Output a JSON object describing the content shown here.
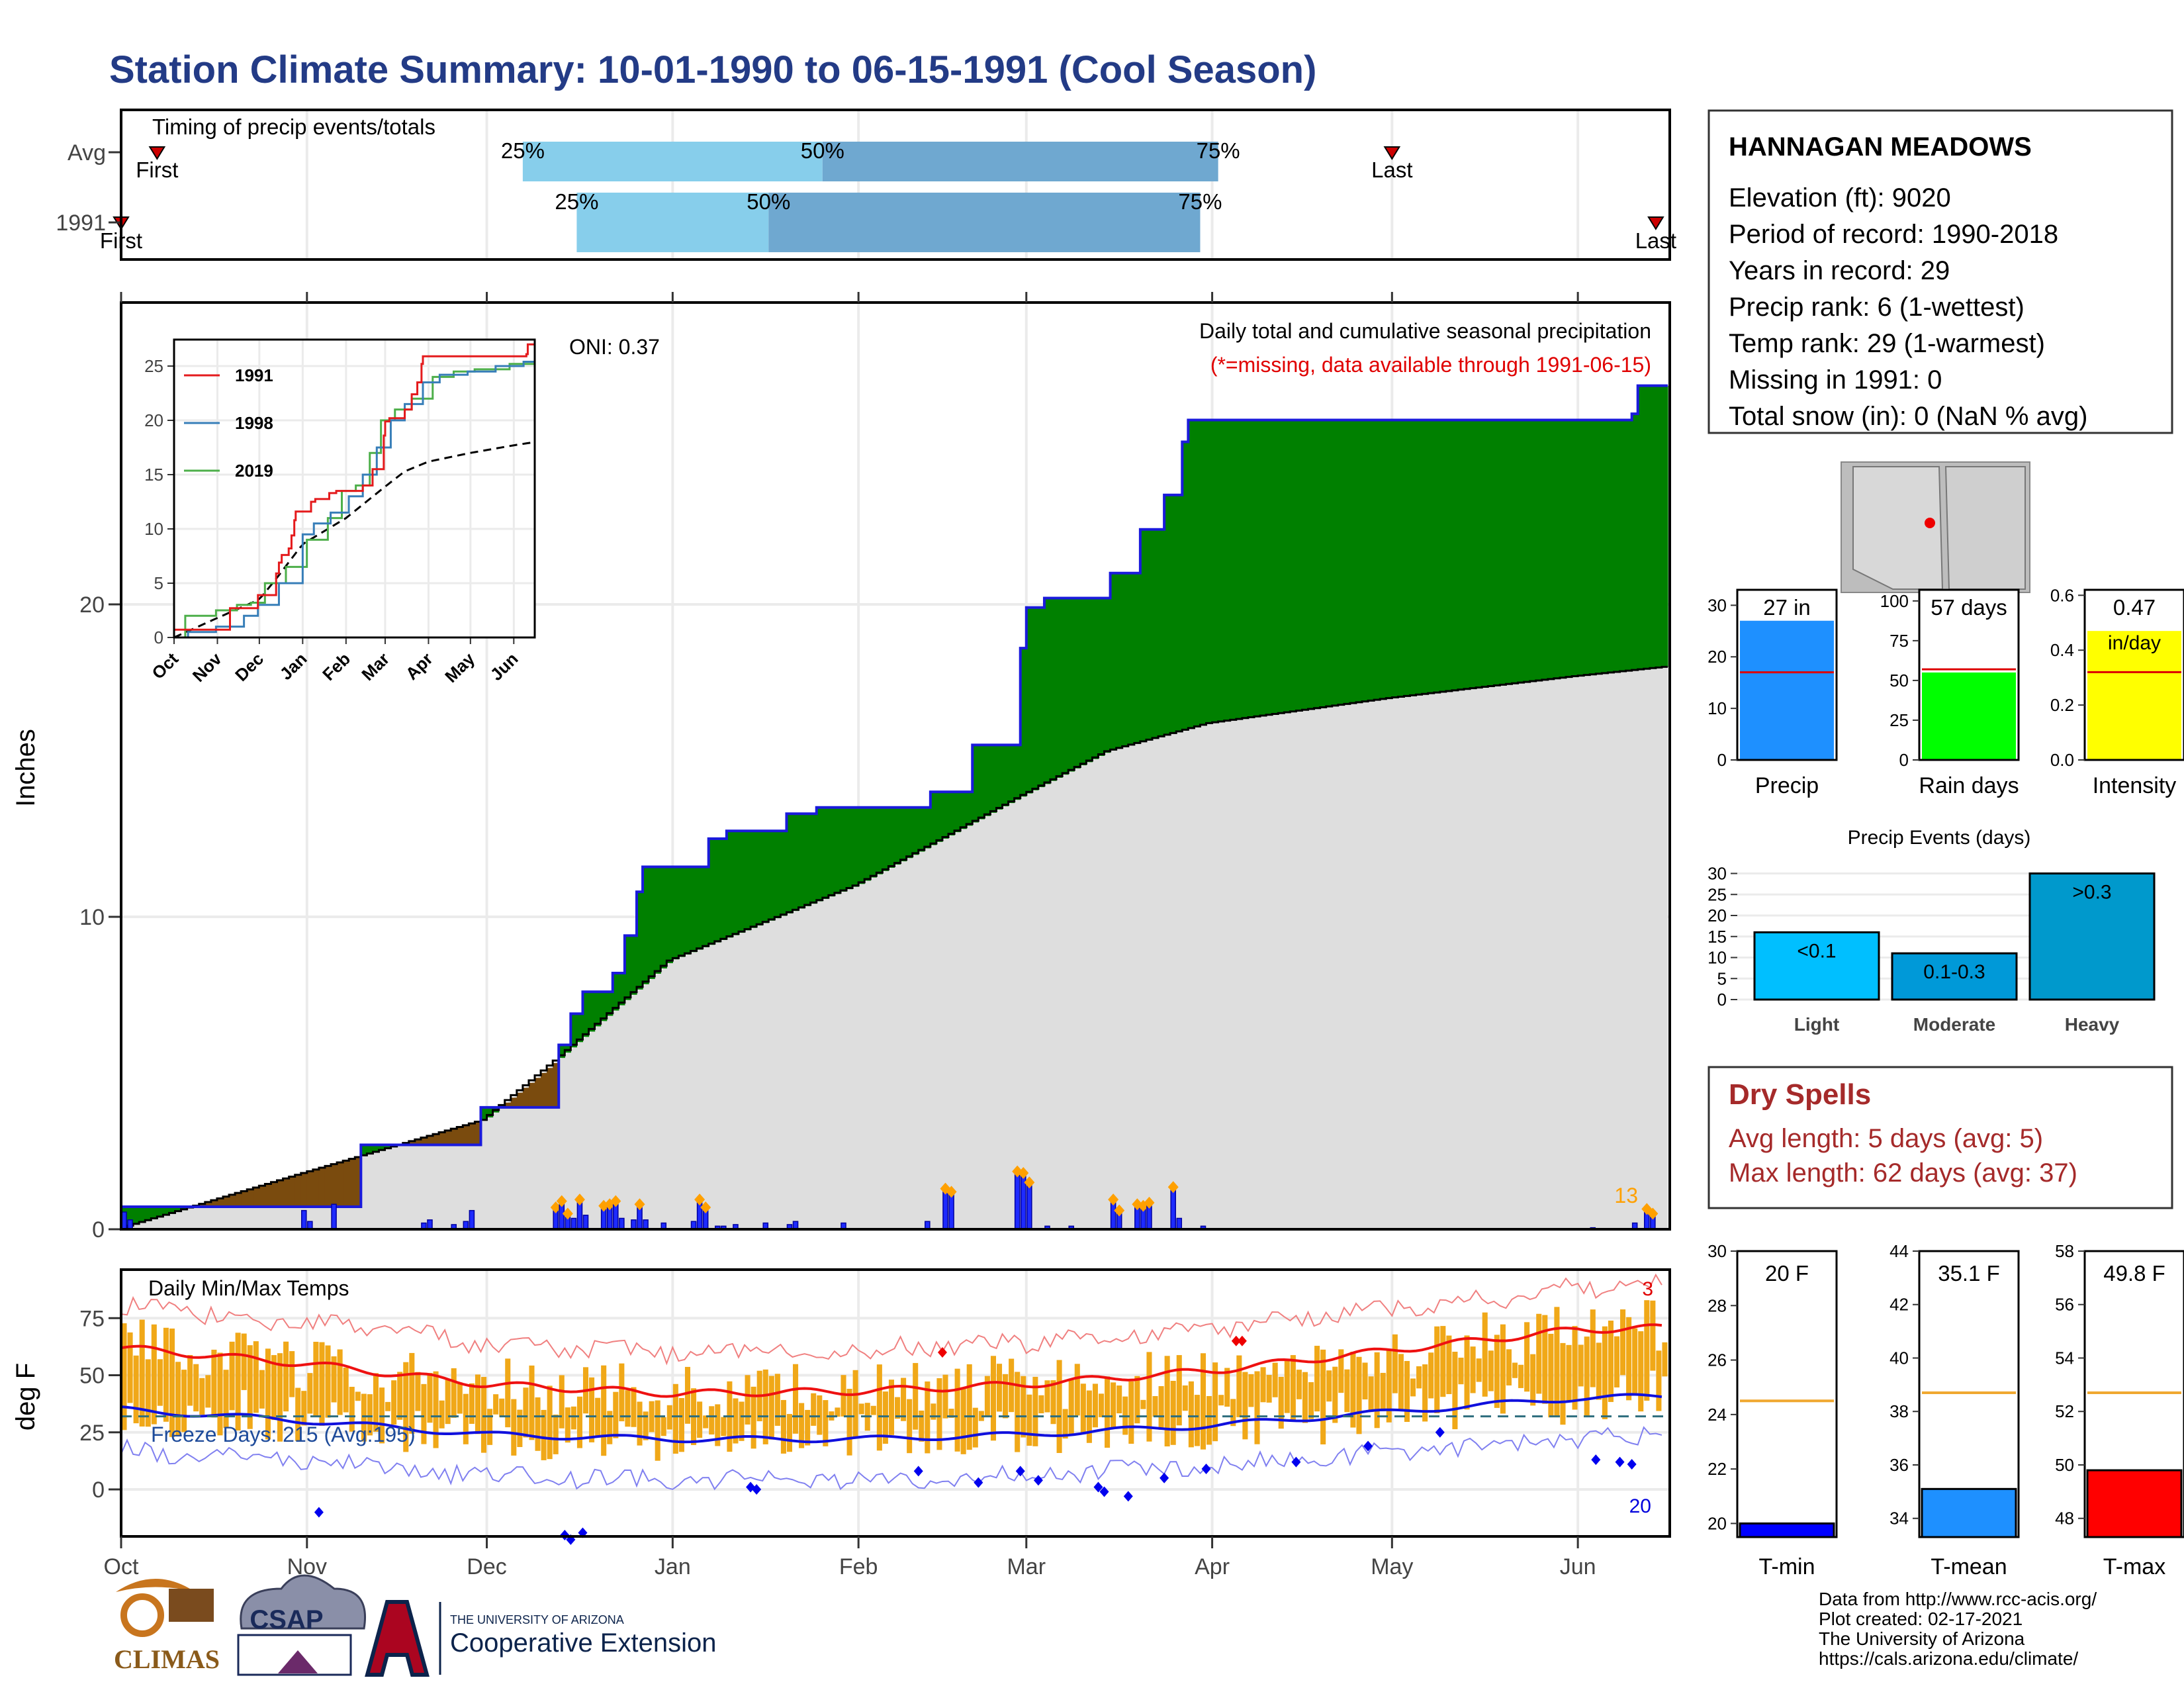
{
  "title": "Station Climate Summary: 10-01-1990 to 06-15-1991 (Cool Season)",
  "colors": {
    "title": "#233b86",
    "precip_green": "#008000",
    "deficit_brown": "#7a4b0e",
    "normal_gray": "#dedede",
    "blue_line": "#1a1adc",
    "temp_bar": "#f0a818",
    "dry_red": "#a52a2a"
  },
  "timing": {
    "label": "Timing of precip events/totals",
    "rows": [
      {
        "name": "Avg",
        "first_label": "First",
        "last_label": "Last",
        "q25": "25%",
        "q50": "50%",
        "q75": "75%"
      },
      {
        "name": "1991",
        "first_label": "First",
        "last_label": "Last",
        "q25": "25%",
        "q50": "50%",
        "q75": "75%"
      }
    ]
  },
  "precip_main": {
    "ylabel": "Inches",
    "oni": "ONI: 0.37",
    "note1": "Daily total and cumulative seasonal precipitation",
    "note2": "(*=missing, data available through 1991-06-15)",
    "count_label": "13",
    "yticks": [
      "0",
      "10",
      "20"
    ]
  },
  "inset": {
    "legend": [
      "1991",
      "1998",
      "2019"
    ],
    "legend_colors": [
      "#e41a1c",
      "#377eb8",
      "#4daf4a"
    ],
    "yticks": [
      "0",
      "5",
      "10",
      "15",
      "20",
      "25"
    ],
    "xticks": [
      "Oct",
      "Nov",
      "Dec",
      "Jan",
      "Feb",
      "Mar",
      "Apr",
      "May",
      "Jun"
    ]
  },
  "temps": {
    "label": "Daily Min/Max Temps",
    "ylabel": "deg F",
    "freeze": "Freeze Days: 215 (Avg:195)",
    "hi_count": "3",
    "lo_count": "20",
    "yticks": [
      "0",
      "25",
      "50",
      "75"
    ]
  },
  "xaxis": {
    "months": [
      "Oct",
      "Nov",
      "Dec",
      "Jan",
      "Feb",
      "Mar",
      "Apr",
      "May",
      "Jun"
    ]
  },
  "station": {
    "name": "HANNAGAN MEADOWS",
    "lines": [
      "Elevation (ft): 9020",
      "Period of record: 1990-2018",
      "Years in record: 29",
      "Precip rank: 6 (1-wettest)",
      "Temp rank: 29 (1-warmest)",
      "Missing in 1991: 0",
      "Total snow (in): 0 (NaN % avg)"
    ]
  },
  "mini_bars": [
    {
      "name": "Precip",
      "label": "27 in",
      "sublabel": "",
      "yticks": [
        "0",
        "10",
        "20",
        "30"
      ],
      "color": "#1e90ff"
    },
    {
      "name": "Rain days",
      "label": "57 days",
      "sublabel": "",
      "yticks": [
        "0",
        "25",
        "50",
        "75",
        "100"
      ],
      "color": "#00ff00"
    },
    {
      "name": "Intensity",
      "label": "0.47",
      "sublabel": "in/day",
      "yticks": [
        "0.0",
        "0.2",
        "0.4",
        "0.6"
      ],
      "color": "#ffff00"
    }
  ],
  "events": {
    "title": "Precip Events (days)",
    "yticks": [
      "0",
      "5",
      "10",
      "15",
      "20",
      "25",
      "30"
    ],
    "bars": [
      {
        "category": "Light",
        "label": "<0.1",
        "value": 16
      },
      {
        "category": "Moderate",
        "label": "0.1-0.3",
        "value": 11
      },
      {
        "category": "Heavy",
        "label": ">0.3",
        "value": 30
      }
    ]
  },
  "dry": {
    "title": "Dry Spells",
    "avg": "Avg length: 5 days (avg: 5)",
    "max": "Max length: 62 days (avg: 37)"
  },
  "temp_bars": [
    {
      "name": "T-min",
      "label": "20 F",
      "value": 20,
      "avg": 24.5,
      "ymin": 19.5,
      "ymax": 30,
      "yticks": [
        "20",
        "22",
        "24",
        "26",
        "28",
        "30"
      ],
      "color": "#0000ff"
    },
    {
      "name": "T-mean",
      "label": "35.1 F",
      "value": 35.1,
      "avg": 38.7,
      "ymin": 33.3,
      "ymax": 44,
      "yticks": [
        "34",
        "36",
        "38",
        "40",
        "42",
        "44"
      ],
      "color": "#1e90ff"
    },
    {
      "name": "T-max",
      "label": "49.8 F",
      "value": 49.8,
      "avg": 52.7,
      "ymin": 47.3,
      "ymax": 58,
      "yticks": [
        "48",
        "50",
        "52",
        "54",
        "56",
        "58"
      ],
      "color": "#ff0000"
    }
  ],
  "footer": {
    "lines": [
      "Data from http://www.rcc-acis.org/",
      "Plot created: 02-17-2021",
      "The University of Arizona",
      "https://cals.arizona.edu/climate/"
    ],
    "logo1": "CLIMAS",
    "logo2": "CSAP",
    "logo3_small": "THE UNIVERSITY OF ARIZONA",
    "logo3": "Cooperative Extension"
  },
  "chart_data": [
    {
      "type": "area",
      "title": "Daily total and cumulative seasonal precipitation",
      "ylabel": "Inches",
      "ylim": [
        0,
        29
      ],
      "x": [
        "Oct 1",
        "Nov 1",
        "Dec 1",
        "Dec 13",
        "Jan 1",
        "Feb 1",
        "Mar 1",
        "Mar 15",
        "Apr 1",
        "May 1",
        "Jun 1",
        "Jun 15"
      ],
      "series": [
        {
          "name": "1991",
          "values": [
            0.7,
            2.7,
            3.9,
            5.9,
            11.6,
            13.5,
            15.5,
            21.4,
            26.1,
            26.1,
            26.1,
            27.0
          ]
        },
        {
          "name": "Avg",
          "values": [
            0,
            1.8,
            3.5,
            5.4,
            8.6,
            11.0,
            13.9,
            15.3,
            16.2,
            17.0,
            17.7,
            18.0
          ]
        }
      ]
    },
    {
      "type": "line",
      "title": "Daily Min/Max Temps",
      "ylabel": "deg F",
      "ylim": [
        -15,
        95
      ],
      "x": [
        "Oct",
        "Nov",
        "Dec",
        "Jan",
        "Feb",
        "Mar",
        "Apr",
        "May",
        "Jun"
      ],
      "series": [
        {
          "name": "Avg max",
          "values": [
            62,
            55,
            46,
            42,
            43,
            46,
            52,
            61,
            70
          ]
        },
        {
          "name": "Avg min",
          "values": [
            35,
            30,
            24,
            22,
            22,
            24,
            28,
            34,
            40
          ]
        }
      ]
    },
    {
      "type": "bar",
      "title": "Precip Events (days)",
      "categories": [
        "Light",
        "Moderate",
        "Heavy"
      ],
      "values": [
        16,
        11,
        30
      ]
    },
    {
      "type": "bar",
      "categories": [
        "Precip",
        "Rain days",
        "Intensity"
      ],
      "values": [
        27,
        57,
        0.47
      ]
    },
    {
      "type": "bar",
      "categories": [
        "T-min",
        "T-mean",
        "T-max"
      ],
      "values": [
        20,
        35.1,
        49.8
      ]
    }
  ]
}
